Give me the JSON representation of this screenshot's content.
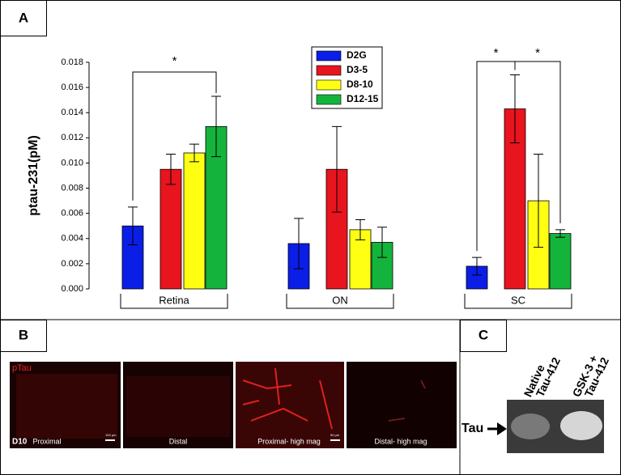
{
  "chart_data": {
    "type": "bar",
    "panel_label": "A",
    "y_label": "ptau-231(pM)",
    "categories": [
      "Retina",
      "ON",
      "SC"
    ],
    "series": [
      {
        "name": "D2G",
        "color": "#0a1ee6",
        "values": [
          0.005,
          0.0036,
          0.0018
        ],
        "errors": [
          0.0015,
          0.002,
          0.0007
        ]
      },
      {
        "name": "D3-5",
        "color": "#e8141e",
        "values": [
          0.0095,
          0.0095,
          0.0143
        ],
        "errors": [
          0.0012,
          0.0034,
          0.0027
        ]
      },
      {
        "name": "D8-10",
        "color": "#ffff14",
        "values": [
          0.0108,
          0.0047,
          0.007
        ],
        "errors": [
          0.0007,
          0.0008,
          0.0037
        ]
      },
      {
        "name": "D12-15",
        "color": "#14b43c",
        "values": [
          0.0129,
          0.0037,
          0.0044
        ],
        "errors": [
          0.0024,
          0.0012,
          0.0003
        ]
      }
    ],
    "ylim": [
      0,
      0.018
    ],
    "yticks": [
      {
        "value": 0,
        "label": "0.000"
      },
      {
        "value": 0.002,
        "label": "0.002"
      },
      {
        "value": 0.004,
        "label": "0.004"
      },
      {
        "value": 0.006,
        "label": "0.006"
      },
      {
        "value": 0.008,
        "label": "0.008"
      },
      {
        "value": 0.01,
        "label": "0.010"
      },
      {
        "value": 0.012,
        "label": "0.012"
      },
      {
        "value": 0.014,
        "label": "0.014"
      },
      {
        "value": 0.016,
        "label": "0.016"
      },
      {
        "value": 0.018,
        "label": "0.018"
      }
    ],
    "annotations": [
      "*",
      "*",
      "*"
    ]
  },
  "panels": {
    "b": {
      "label": "B",
      "stain": "pTau",
      "day": "D10",
      "captions": [
        "Proximal",
        "Distal",
        "Proximal- high mag",
        "Distal- high mag"
      ],
      "scale_bars": [
        "100 µm",
        "50 µm"
      ]
    },
    "c": {
      "label": "C",
      "lanes": [
        [
          "Native",
          "Tau-412"
        ],
        [
          "GSK-3 +",
          "Tau-412"
        ]
      ],
      "band": "Tau"
    }
  }
}
